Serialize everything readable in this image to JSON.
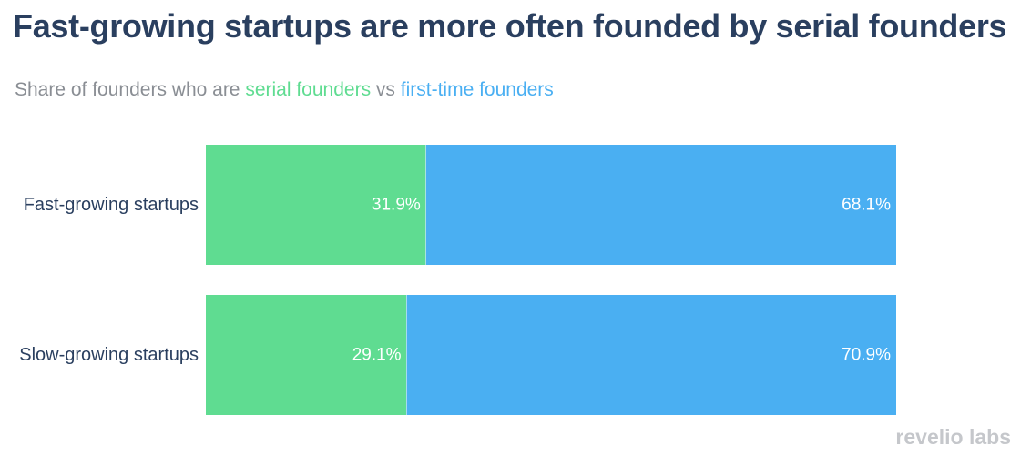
{
  "chart_data": {
    "type": "bar",
    "orientation": "horizontal",
    "stacked": true,
    "title": "Fast-growing startups are more often founded by serial founders",
    "subtitle": {
      "prefix": "Share of founders who are ",
      "series1": "serial founders",
      "middle": " vs ",
      "series2": "first-time founders"
    },
    "categories": [
      "Fast-growing startups",
      "Slow-growing startups"
    ],
    "series": [
      {
        "name": "serial founders",
        "color": "#5fdc91",
        "values": [
          31.9,
          29.1
        ],
        "labels": [
          "31.9%",
          "29.1%"
        ]
      },
      {
        "name": "first-time founders",
        "color": "#4aaff2",
        "values": [
          68.1,
          70.9
        ],
        "labels": [
          "68.1%",
          "70.9%"
        ]
      }
    ],
    "xlim": [
      0,
      100
    ]
  },
  "logo": "revelio labs"
}
